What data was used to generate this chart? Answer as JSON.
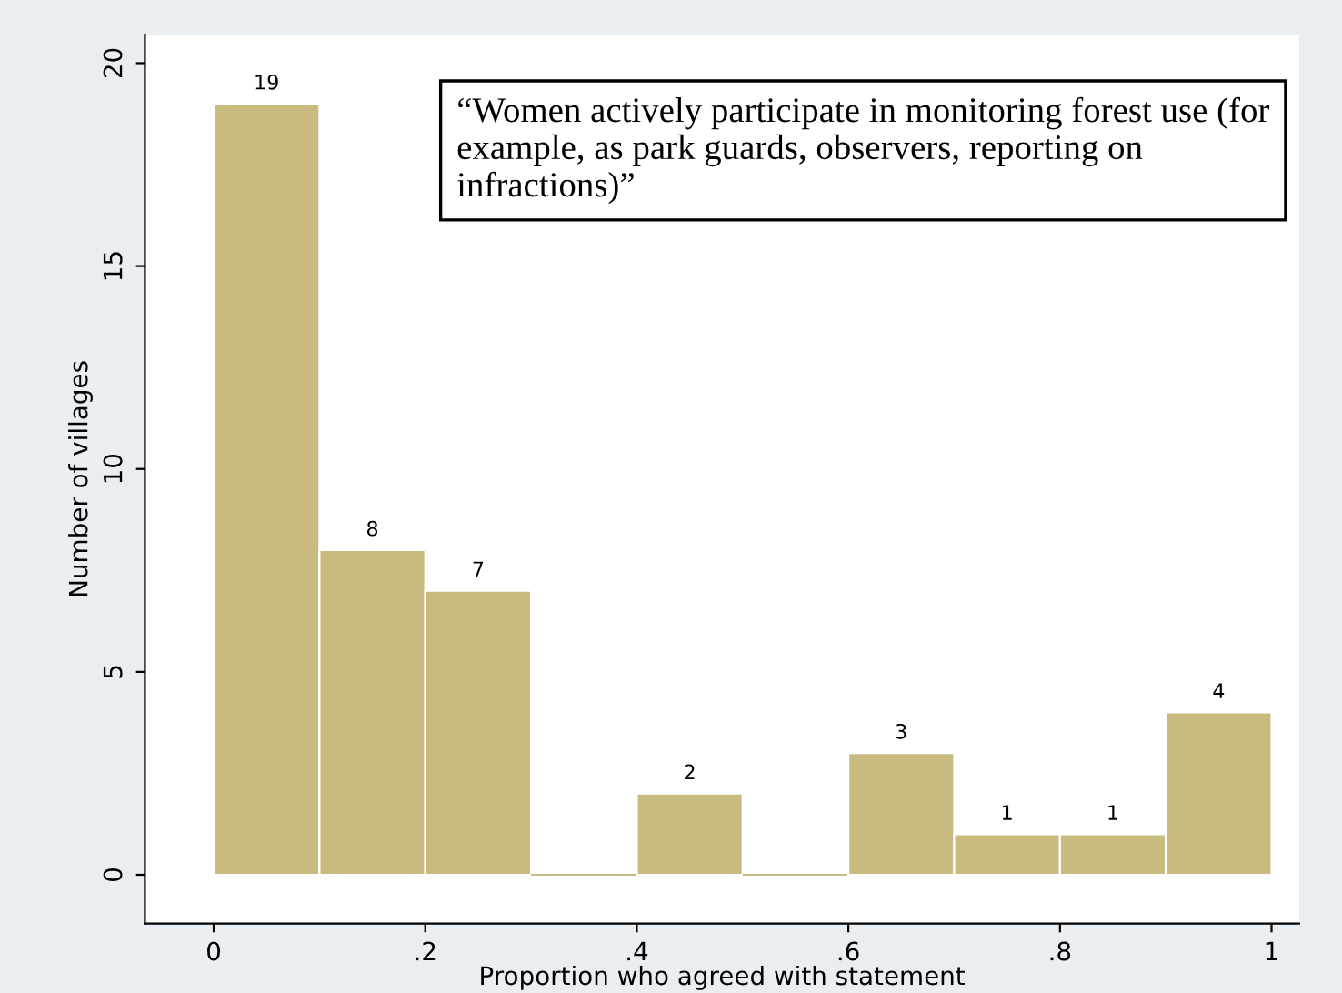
{
  "chart_data": {
    "type": "histogram",
    "xlabel": "Proportion who agreed with statement",
    "ylabel": "Number of villages",
    "bins": [
      0,
      0.1,
      0.2,
      0.3,
      0.4,
      0.5,
      0.6,
      0.7,
      0.8,
      0.9,
      1
    ],
    "values": [
      19,
      8,
      7,
      0,
      2,
      0,
      3,
      1,
      1,
      4
    ],
    "color": "#c9bb7f",
    "value_labels": [
      "19",
      "8",
      "7",
      null,
      "2",
      null,
      "3",
      "1",
      "1",
      "4"
    ],
    "xlim": [
      -0.065,
      1.026
    ],
    "ylim": [
      -1.2,
      20.7
    ],
    "xticks": [
      0,
      {
        "value": 0.2,
        "label": ".2"
      },
      {
        "value": 0.4,
        "label": ".4"
      },
      {
        "value": 0.6,
        "label": ".6"
      },
      {
        "value": 0.8,
        "label": ".8"
      },
      1
    ],
    "yticks": [
      0,
      5,
      10,
      15,
      20
    ],
    "grid": false,
    "annotations": [
      "“Women actively participate in monitoring forest use (for example, as park guards, observers, reporting on infractions)”"
    ]
  }
}
